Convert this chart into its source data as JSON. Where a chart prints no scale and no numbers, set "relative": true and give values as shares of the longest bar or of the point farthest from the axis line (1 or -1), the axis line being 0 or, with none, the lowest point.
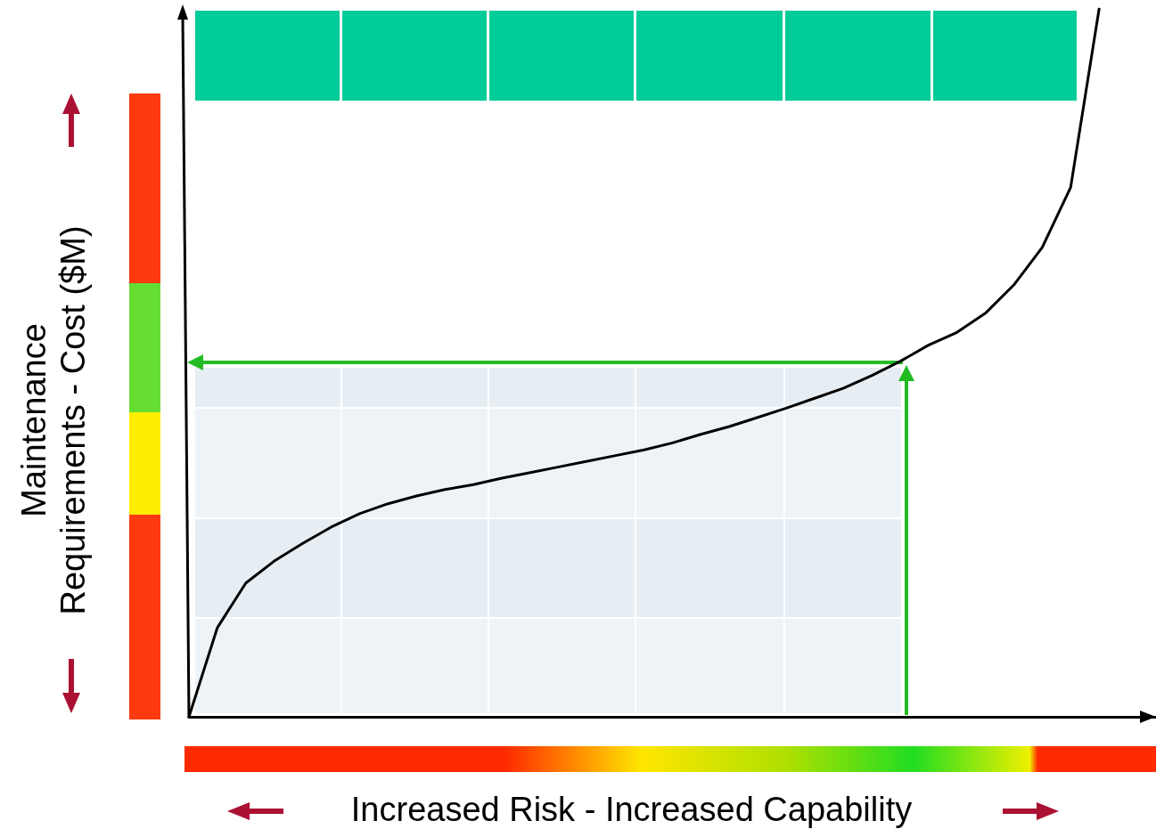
{
  "chart_data": {
    "type": "line",
    "relative": true,
    "xlabel": "Increased Risk - Increased Capability",
    "ylabel": "Maintenance\nRequirements - Cost ($M)",
    "categories": [
      null,
      null,
      null,
      null,
      null,
      null,
      null,
      null,
      null,
      null,
      null,
      null,
      null,
      null,
      null,
      null,
      null,
      null,
      null,
      null,
      null,
      null,
      null,
      null,
      null,
      null,
      null,
      null,
      null,
      null,
      null,
      null,
      null,
      null,
      null
    ],
    "values": [
      0,
      0.126,
      0.189,
      0.22,
      0.245,
      0.268,
      0.287,
      0.301,
      0.312,
      0.321,
      0.328,
      0.337,
      0.345,
      0.353,
      0.361,
      0.369,
      0.377,
      0.387,
      0.399,
      0.41,
      0.423,
      0.436,
      0.45,
      0.464,
      0.482,
      0.502,
      0.525,
      0.543,
      0.57,
      0.61,
      0.663,
      0.748,
      1,
      null,
      null
    ],
    "color": "#000000",
    "marker": "none",
    "line_style": "solid",
    "grid": false,
    "tick_labels": false
  }
}
